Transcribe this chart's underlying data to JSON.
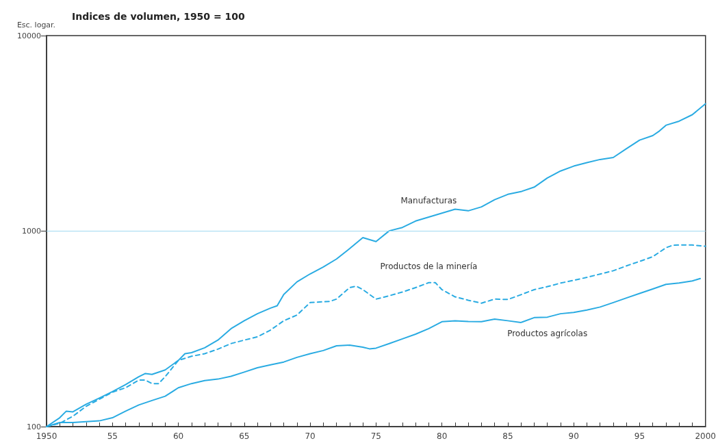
{
  "chart_data": {
    "type": "line",
    "title": "Indices de volumen, 1950 = 100",
    "ylabel": "Esc. logar.",
    "log": "y",
    "ref_lines": [
      {
        "axis": "y",
        "value": 1000,
        "label": null,
        "color": "#9fd9f0"
      }
    ],
    "legend": false,
    "xlim": [
      1950,
      2000
    ],
    "xticks": [
      {
        "value": 1950,
        "label": "1950"
      },
      {
        "value": 1951,
        "label": null
      },
      {
        "value": 1952,
        "label": null
      },
      {
        "value": 1953,
        "label": null
      },
      {
        "value": 1954,
        "label": null
      },
      {
        "value": 1955,
        "label": "55"
      },
      {
        "value": 1956,
        "label": null
      },
      {
        "value": 1957,
        "label": null
      },
      {
        "value": 1958,
        "label": null
      },
      {
        "value": 1959,
        "label": null
      },
      {
        "value": 1960,
        "label": "60"
      },
      {
        "value": 1961,
        "label": null
      },
      {
        "value": 1962,
        "label": null
      },
      {
        "value": 1963,
        "label": null
      },
      {
        "value": 1964,
        "label": null
      },
      {
        "value": 1965,
        "label": "65"
      },
      {
        "value": 1966,
        "label": null
      },
      {
        "value": 1967,
        "label": null
      },
      {
        "value": 1968,
        "label": null
      },
      {
        "value": 1969,
        "label": null
      },
      {
        "value": 1970,
        "label": "70"
      },
      {
        "value": 1971,
        "label": null
      },
      {
        "value": 1972,
        "label": null
      },
      {
        "value": 1973,
        "label": null
      },
      {
        "value": 1974,
        "label": null
      },
      {
        "value": 1975,
        "label": "75"
      },
      {
        "value": 1976,
        "label": null
      },
      {
        "value": 1977,
        "label": null
      },
      {
        "value": 1978,
        "label": null
      },
      {
        "value": 1979,
        "label": null
      },
      {
        "value": 1980,
        "label": "80"
      },
      {
        "value": 1981,
        "label": null
      },
      {
        "value": 1982,
        "label": null
      },
      {
        "value": 1983,
        "label": null
      },
      {
        "value": 1984,
        "label": null
      },
      {
        "value": 1985,
        "label": "85"
      },
      {
        "value": 1986,
        "label": null
      },
      {
        "value": 1987,
        "label": null
      },
      {
        "value": 1988,
        "label": null
      },
      {
        "value": 1989,
        "label": null
      },
      {
        "value": 1990,
        "label": "90"
      },
      {
        "value": 1991,
        "label": null
      },
      {
        "value": 1992,
        "label": null
      },
      {
        "value": 1993,
        "label": null
      },
      {
        "value": 1994,
        "label": null
      },
      {
        "value": 1995,
        "label": "95"
      },
      {
        "value": 1996,
        "label": null
      },
      {
        "value": 1997,
        "label": null
      },
      {
        "value": 1998,
        "label": null
      },
      {
        "value": 1999,
        "label": null
      },
      {
        "value": 2000,
        "label": "2000"
      }
    ],
    "ylim": [
      100,
      10000
    ],
    "yticks": [
      100,
      1000,
      10000
    ],
    "series": [
      {
        "name": "Manufacturas",
        "color": "#29abe2",
        "line_style": "solid",
        "x": [
          1950,
          1951,
          1951.5,
          1952,
          1953,
          1954,
          1955,
          1956,
          1957,
          1957.5,
          1958,
          1959,
          1960,
          1960.5,
          1961,
          1962,
          1963,
          1964,
          1965,
          1966,
          1967,
          1967.5,
          1968,
          1969,
          1970,
          1971,
          1972,
          1973,
          1974,
          1975,
          1976,
          1977,
          1978,
          1979,
          1980,
          1981,
          1982,
          1983,
          1984,
          1985,
          1986,
          1987,
          1988,
          1989,
          1990,
          1991,
          1992,
          1993,
          1994,
          1995,
          1996,
          1996.5,
          1997,
          1998,
          1999,
          2000
        ],
        "values": [
          100,
          111,
          120,
          119,
          130,
          140,
          151,
          164,
          180,
          187,
          185,
          195,
          218,
          236,
          239,
          253,
          277,
          317,
          348,
          378,
          404,
          415,
          474,
          550,
          604,
          655,
          720,
          814,
          926,
          884,
          1003,
          1044,
          1126,
          1180,
          1235,
          1295,
          1270,
          1330,
          1447,
          1542,
          1592,
          1678,
          1870,
          2030,
          2150,
          2240,
          2325,
          2380,
          2640,
          2920,
          3080,
          3250,
          3480,
          3650,
          3940,
          4480
        ]
      },
      {
        "name": "Productos de la minería",
        "color": "#29abe2",
        "line_style": "dashed",
        "x": [
          1950,
          1951,
          1952,
          1953,
          1954,
          1955,
          1956,
          1957,
          1957.5,
          1958,
          1958.5,
          1959,
          1960,
          1961,
          1962,
          1963,
          1964,
          1965,
          1966,
          1967,
          1968,
          1969,
          1970,
          1971,
          1971.5,
          1972,
          1973,
          1973.5,
          1974,
          1975,
          1976,
          1977,
          1978,
          1979,
          1979.5,
          1980,
          1981,
          1982,
          1983,
          1984,
          1985,
          1986,
          1987,
          1988,
          1989,
          1990,
          1991,
          1992,
          1993,
          1994,
          1995,
          1996,
          1997,
          1997.5,
          1998,
          1999,
          2000
        ],
        "values": [
          100,
          104,
          113,
          127,
          138,
          150,
          158,
          173,
          173,
          166,
          166,
          180,
          218,
          229,
          236,
          249,
          266,
          277,
          288,
          312,
          348,
          372,
          431,
          435,
          437,
          449,
          514,
          523,
          502,
          449,
          467,
          488,
          514,
          545,
          545,
          502,
          461,
          443,
          428,
          449,
          447,
          473,
          502,
          520,
          542,
          560,
          580,
          603,
          627,
          664,
          700,
          740,
          822,
          846,
          849,
          849,
          837
        ]
      },
      {
        "name": "Productos agrícolas",
        "color": "#29abe2",
        "line_style": "solid",
        "x": [
          1950,
          1951,
          1952,
          1953,
          1954,
          1955,
          1956,
          1957,
          1958,
          1959,
          1960,
          1961,
          1962,
          1963,
          1964,
          1965,
          1966,
          1967,
          1968,
          1969,
          1970,
          1971,
          1972,
          1973,
          1974,
          1974.5,
          1975,
          1976,
          1977,
          1978,
          1979,
          1980,
          1981,
          1982,
          1983,
          1984,
          1985,
          1986,
          1987,
          1988,
          1989,
          1990,
          1991,
          1992,
          1993,
          1994,
          1995,
          1996,
          1997,
          1998,
          1999,
          1999.6
        ],
        "values": [
          100,
          105,
          105,
          106,
          107,
          111,
          120,
          129,
          136,
          143,
          158,
          166,
          172,
          175,
          181,
          190,
          200,
          207,
          214,
          226,
          236,
          245,
          259,
          261,
          255,
          250,
          252,
          266,
          281,
          297,
          317,
          344,
          348,
          345,
          344,
          355,
          348,
          341,
          361,
          363,
          378,
          384,
          395,
          409,
          431,
          455,
          480,
          506,
          534,
          543,
          556,
          572
        ]
      }
    ]
  }
}
